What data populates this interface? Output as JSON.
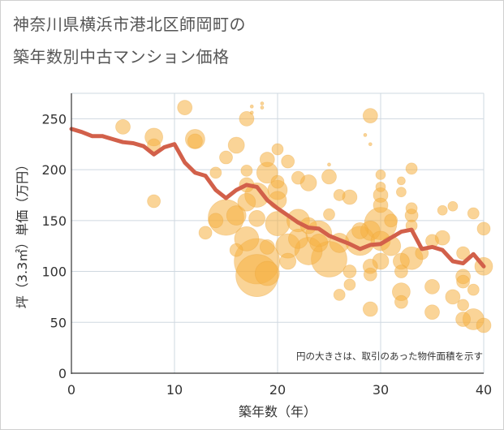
{
  "title_line1": "神奈川県横浜市港北区師岡町の",
  "title_line2": "築年数別中古マンション価格",
  "chart_data": {
    "type": "scatter",
    "title": "神奈川県横浜市港北区師岡町の築年数別中古マンション価格",
    "xlabel": "築年数（年）",
    "ylabel": "坪（3.3㎡）単価（万円）",
    "xlim": [
      0,
      40
    ],
    "ylim": [
      0,
      275
    ],
    "xticks": [
      0,
      10,
      20,
      30,
      40
    ],
    "yticks": [
      0,
      50,
      100,
      150,
      200,
      250
    ],
    "grid": true,
    "note": "円の大きさは、取引のあった物件面積を示す",
    "colors": {
      "bubble": "#f5b041",
      "line": "#d2604a",
      "grid": "#cfd8e0",
      "background": "#ffffff"
    },
    "line_series": {
      "x": [
        0,
        1,
        2,
        3,
        4,
        5,
        6,
        7,
        8,
        9,
        10,
        11,
        12,
        13,
        14,
        15,
        16,
        17,
        18,
        19,
        20,
        21,
        22,
        23,
        24,
        25,
        26,
        27,
        28,
        29,
        30,
        31,
        32,
        33,
        34,
        35,
        36,
        37,
        38,
        39,
        40
      ],
      "y": [
        240,
        237,
        233,
        233,
        230,
        227,
        226,
        223,
        215,
        222,
        225,
        207,
        197,
        194,
        180,
        172,
        180,
        185,
        183,
        170,
        162,
        155,
        148,
        143,
        142,
        135,
        131,
        127,
        122,
        126,
        127,
        133,
        139,
        141,
        122,
        124,
        121,
        110,
        108,
        117,
        105
      ]
    },
    "bubbles": [
      {
        "x": 5,
        "y": 242,
        "s": 9
      },
      {
        "x": 8,
        "y": 232,
        "s": 11
      },
      {
        "x": 8,
        "y": 224,
        "s": 8
      },
      {
        "x": 8,
        "y": 169,
        "s": 8
      },
      {
        "x": 11,
        "y": 261,
        "s": 9
      },
      {
        "x": 12,
        "y": 230,
        "s": 12
      },
      {
        "x": 12,
        "y": 228,
        "s": 9
      },
      {
        "x": 13,
        "y": 138,
        "s": 8
      },
      {
        "x": 14,
        "y": 197,
        "s": 7
      },
      {
        "x": 14,
        "y": 150,
        "s": 9
      },
      {
        "x": 15,
        "y": 153,
        "s": 22
      },
      {
        "x": 15,
        "y": 212,
        "s": 8
      },
      {
        "x": 16,
        "y": 224,
        "s": 10
      },
      {
        "x": 16,
        "y": 155,
        "s": 12
      },
      {
        "x": 16,
        "y": 121,
        "s": 8
      },
      {
        "x": 17,
        "y": 250,
        "s": 9
      },
      {
        "x": 17,
        "y": 185,
        "s": 9
      },
      {
        "x": 17,
        "y": 168,
        "s": 11
      },
      {
        "x": 17,
        "y": 132,
        "s": 15
      },
      {
        "x": 17,
        "y": 199,
        "s": 7
      },
      {
        "x": 17.5,
        "y": 262,
        "s": 2
      },
      {
        "x": 17.5,
        "y": 256,
        "s": 2
      },
      {
        "x": 18,
        "y": 175,
        "s": 15
      },
      {
        "x": 18,
        "y": 110,
        "s": 28
      },
      {
        "x": 18,
        "y": 96,
        "s": 26
      },
      {
        "x": 18,
        "y": 152,
        "s": 10
      },
      {
        "x": 18.5,
        "y": 265,
        "s": 2
      },
      {
        "x": 18.5,
        "y": 261,
        "s": 2
      },
      {
        "x": 19,
        "y": 210,
        "s": 9
      },
      {
        "x": 19,
        "y": 197,
        "s": 13
      },
      {
        "x": 19,
        "y": 124,
        "s": 9
      },
      {
        "x": 19,
        "y": 98,
        "s": 15
      },
      {
        "x": 20,
        "y": 180,
        "s": 12
      },
      {
        "x": 20,
        "y": 170,
        "s": 11
      },
      {
        "x": 20,
        "y": 147,
        "s": 15
      },
      {
        "x": 20,
        "y": 188,
        "s": 8
      },
      {
        "x": 20,
        "y": 220,
        "s": 7
      },
      {
        "x": 21,
        "y": 208,
        "s": 8
      },
      {
        "x": 21,
        "y": 125,
        "s": 15
      },
      {
        "x": 21,
        "y": 110,
        "s": 10
      },
      {
        "x": 22,
        "y": 192,
        "s": 8
      },
      {
        "x": 22,
        "y": 150,
        "s": 14
      },
      {
        "x": 22,
        "y": 132,
        "s": 12
      },
      {
        "x": 23,
        "y": 187,
        "s": 10
      },
      {
        "x": 23,
        "y": 120,
        "s": 17
      },
      {
        "x": 23,
        "y": 145,
        "s": 10
      },
      {
        "x": 24,
        "y": 137,
        "s": 16
      },
      {
        "x": 24,
        "y": 128,
        "s": 11
      },
      {
        "x": 25,
        "y": 193,
        "s": 9
      },
      {
        "x": 25,
        "y": 156,
        "s": 7
      },
      {
        "x": 25,
        "y": 112,
        "s": 22
      },
      {
        "x": 25,
        "y": 205,
        "s": 2
      },
      {
        "x": 26,
        "y": 175,
        "s": 7
      },
      {
        "x": 26,
        "y": 128,
        "s": 12
      },
      {
        "x": 26,
        "y": 77,
        "s": 7
      },
      {
        "x": 27,
        "y": 173,
        "s": 9
      },
      {
        "x": 27,
        "y": 100,
        "s": 8
      },
      {
        "x": 27,
        "y": 87,
        "s": 7
      },
      {
        "x": 28,
        "y": 130,
        "s": 18
      },
      {
        "x": 28,
        "y": 140,
        "s": 10
      },
      {
        "x": 28.5,
        "y": 234,
        "s": 2
      },
      {
        "x": 29,
        "y": 253,
        "s": 9
      },
      {
        "x": 29,
        "y": 225,
        "s": 2
      },
      {
        "x": 29,
        "y": 140,
        "s": 12
      },
      {
        "x": 29,
        "y": 105,
        "s": 9
      },
      {
        "x": 29,
        "y": 97,
        "s": 8
      },
      {
        "x": 29,
        "y": 63,
        "s": 9
      },
      {
        "x": 30,
        "y": 195,
        "s": 6
      },
      {
        "x": 30,
        "y": 183,
        "s": 6
      },
      {
        "x": 30,
        "y": 175,
        "s": 9
      },
      {
        "x": 30,
        "y": 165,
        "s": 9
      },
      {
        "x": 30,
        "y": 147,
        "s": 20
      },
      {
        "x": 30,
        "y": 130,
        "s": 12
      },
      {
        "x": 30,
        "y": 110,
        "s": 10
      },
      {
        "x": 31,
        "y": 150,
        "s": 8
      },
      {
        "x": 31,
        "y": 125,
        "s": 12
      },
      {
        "x": 32,
        "y": 189,
        "s": 5
      },
      {
        "x": 32,
        "y": 178,
        "s": 6
      },
      {
        "x": 32,
        "y": 110,
        "s": 10
      },
      {
        "x": 32,
        "y": 100,
        "s": 8
      },
      {
        "x": 32,
        "y": 80,
        "s": 11
      },
      {
        "x": 32,
        "y": 70,
        "s": 8
      },
      {
        "x": 33,
        "y": 201,
        "s": 7
      },
      {
        "x": 33,
        "y": 162,
        "s": 7
      },
      {
        "x": 33,
        "y": 155,
        "s": 8
      },
      {
        "x": 33,
        "y": 145,
        "s": 7
      },
      {
        "x": 33,
        "y": 113,
        "s": 14
      },
      {
        "x": 34,
        "y": 118,
        "s": 8
      },
      {
        "x": 35,
        "y": 130,
        "s": 8
      },
      {
        "x": 35,
        "y": 85,
        "s": 9
      },
      {
        "x": 35,
        "y": 60,
        "s": 9
      },
      {
        "x": 36,
        "y": 160,
        "s": 6
      },
      {
        "x": 36,
        "y": 133,
        "s": 9
      },
      {
        "x": 37,
        "y": 164,
        "s": 6
      },
      {
        "x": 37,
        "y": 75,
        "s": 9
      },
      {
        "x": 38,
        "y": 118,
        "s": 8
      },
      {
        "x": 38,
        "y": 95,
        "s": 9
      },
      {
        "x": 38,
        "y": 90,
        "s": 8
      },
      {
        "x": 38,
        "y": 67,
        "s": 7
      },
      {
        "x": 38,
        "y": 53,
        "s": 9
      },
      {
        "x": 39,
        "y": 157,
        "s": 7
      },
      {
        "x": 39,
        "y": 82,
        "s": 7
      },
      {
        "x": 39,
        "y": 53,
        "s": 13
      },
      {
        "x": 40,
        "y": 142,
        "s": 8
      },
      {
        "x": 40,
        "y": 105,
        "s": 11
      },
      {
        "x": 40,
        "y": 47,
        "s": 9
      }
    ]
  }
}
